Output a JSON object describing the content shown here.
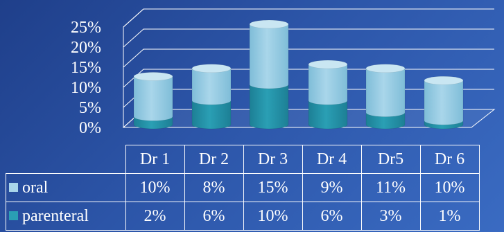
{
  "chart_data": {
    "type": "bar",
    "stacked": true,
    "three_d": true,
    "categories": [
      "Dr 1",
      "Dr 2",
      "Dr 3",
      "Dr 4",
      "Dr5",
      "Dr 6"
    ],
    "series": [
      {
        "name": "oral",
        "values": [
          10,
          8,
          15,
          9,
          11,
          10
        ],
        "labels": [
          "10%",
          "8%",
          "15%",
          "9%",
          "11%",
          "10%"
        ],
        "color": "#a9d6ea"
      },
      {
        "name": "parenteral",
        "values": [
          2,
          6,
          10,
          6,
          3,
          1
        ],
        "labels": [
          "2%",
          "6%",
          "10%",
          "6%",
          "3%",
          "1%"
        ],
        "color": "#2a9fb4"
      }
    ],
    "yticks": [
      "25%",
      "20%",
      "15%",
      "10%",
      "5%",
      "0%"
    ],
    "ylim": [
      0,
      25
    ],
    "grid": true,
    "legend": "data-table"
  }
}
